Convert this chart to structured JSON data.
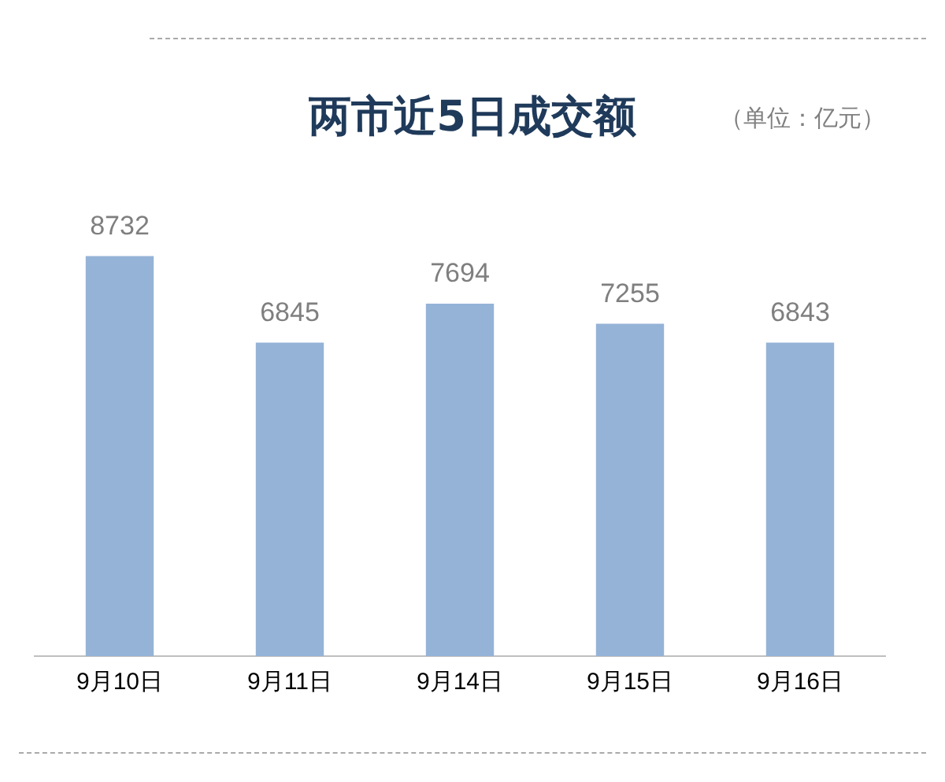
{
  "chart_data": {
    "type": "bar",
    "title": "两市近5日成交额",
    "subtitle": "（单位：亿元）",
    "categories": [
      "9月10日",
      "9月11日",
      "9月14日",
      "9月15日",
      "9月16日"
    ],
    "values": [
      8732,
      6845,
      7694,
      7255,
      6843
    ],
    "color": "#95b3d7",
    "data_labels": true,
    "grid": false,
    "legend": false
  }
}
